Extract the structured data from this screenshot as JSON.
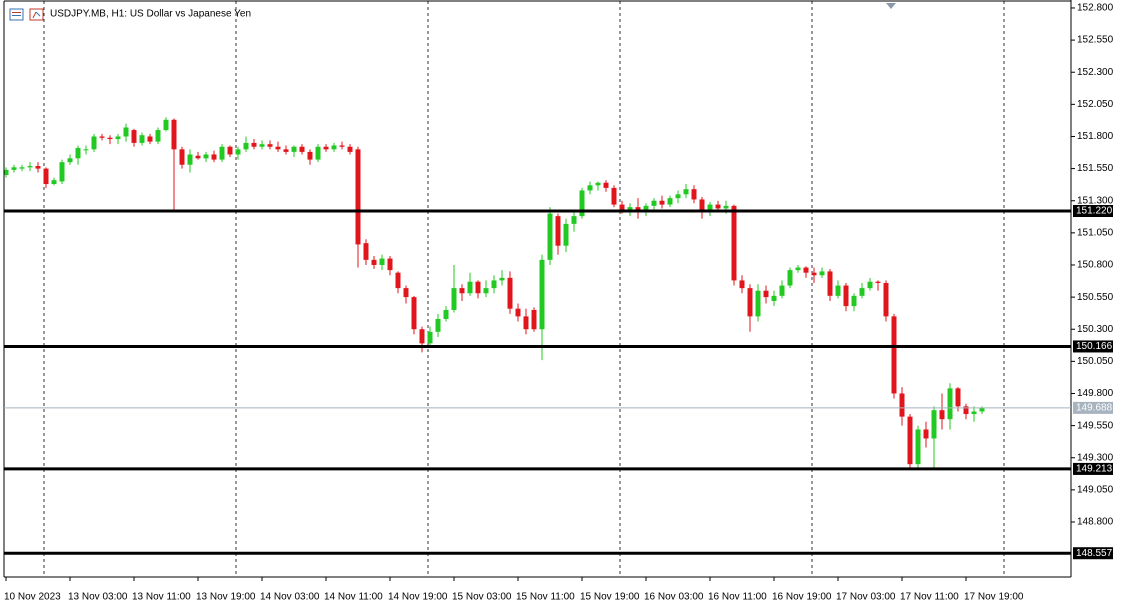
{
  "chart_data": {
    "type": "candlestick",
    "title": "USDJPY.MB, H1:  US Dollar vs Japanese Yen",
    "categories": [
      "10 Nov 2023",
      null,
      null,
      null,
      null,
      null,
      null,
      null,
      "13 Nov 03:00",
      null,
      null,
      null,
      null,
      null,
      null,
      null,
      "13 Nov 11:00",
      null,
      null,
      null,
      null,
      null,
      null,
      null,
      "13 Nov 19:00",
      null,
      null,
      null,
      null,
      null,
      null,
      null,
      "14 Nov 03:00",
      null,
      null,
      null,
      null,
      null,
      null,
      null,
      "14 Nov 11:00",
      null,
      null,
      null,
      null,
      null,
      null,
      null,
      "14 Nov 19:00",
      null,
      null,
      null,
      null,
      null,
      null,
      null,
      "15 Nov 03:00",
      null,
      null,
      null,
      null,
      null,
      null,
      null,
      "15 Nov 11:00",
      null,
      null,
      null,
      null,
      null,
      null,
      null,
      "15 Nov 19:00",
      null,
      null,
      null,
      null,
      null,
      null,
      null,
      "16 Nov 03:00",
      null,
      null,
      null,
      null,
      null,
      null,
      null,
      "16 Nov 11:00",
      null,
      null,
      null,
      null,
      null,
      null,
      null,
      "16 Nov 19:00",
      null,
      null,
      null,
      null,
      null,
      null,
      null,
      "17 Nov 03:00",
      null,
      null,
      null,
      null,
      null,
      null,
      null,
      "17 Nov 11:00",
      null,
      null,
      null,
      null,
      null,
      null,
      null,
      "17 Nov 19:00",
      null,
      null
    ],
    "open": [
      151.5,
      151.54,
      151.55,
      151.56,
      151.57,
      151.55,
      151.43,
      151.45,
      151.6,
      151.63,
      151.7,
      151.7,
      151.8,
      151.79,
      151.78,
      151.8,
      151.85,
      151.75,
      151.8,
      151.76,
      151.85,
      151.93,
      151.7,
      151.58,
      151.65,
      151.63,
      151.66,
      151.62,
      151.72,
      151.66,
      151.7,
      151.75,
      151.72,
      151.74,
      151.72,
      151.7,
      151.68,
      151.72,
      151.68,
      151.62,
      151.72,
      151.7,
      151.73,
      151.72,
      151.7,
      150.97,
      150.84,
      150.8,
      150.85,
      150.74,
      150.62,
      150.55,
      150.3,
      150.19,
      150.28,
      150.38,
      150.45,
      150.62,
      150.58,
      150.67,
      150.58,
      150.62,
      150.68,
      150.7,
      150.46,
      150.4,
      150.45,
      150.3,
      150.84,
      151.18,
      150.95,
      151.12,
      151.18,
      151.38,
      151.42,
      151.44,
      151.4,
      151.27,
      151.23,
      151.25,
      151.22,
      151.26,
      151.3,
      151.27,
      151.32,
      151.35,
      151.39,
      151.31,
      151.22,
      151.27,
      151.24,
      151.26,
      150.68,
      150.62,
      150.4,
      150.6,
      150.52,
      150.56,
      150.64,
      150.76,
      150.78,
      150.74,
      150.72,
      150.75,
      150.56,
      150.64,
      150.48,
      150.56,
      150.62,
      150.67,
      150.66,
      150.4,
      149.8,
      149.62,
      149.25,
      149.52,
      149.45,
      149.67,
      149.6,
      149.84,
      149.7,
      149.64,
      149.66
    ],
    "high": [
      151.56,
      151.58,
      151.58,
      151.6,
      151.6,
      151.56,
      151.48,
      151.62,
      151.66,
      151.73,
      151.73,
      151.82,
      151.82,
      151.81,
      151.82,
      151.9,
      151.86,
      151.83,
      151.82,
      151.87,
      151.95,
      151.94,
      151.72,
      151.7,
      151.68,
      151.68,
      151.69,
      151.74,
      151.73,
      151.72,
      151.8,
      151.78,
      151.77,
      151.77,
      151.76,
      151.73,
      151.73,
      151.74,
      151.7,
      151.74,
      151.74,
      151.75,
      151.76,
      151.74,
      151.72,
      151.0,
      150.87,
      150.88,
      150.87,
      150.75,
      150.64,
      150.56,
      150.32,
      150.32,
      150.42,
      150.48,
      150.8,
      150.65,
      150.74,
      150.68,
      150.68,
      150.72,
      150.76,
      150.75,
      150.5,
      150.46,
      150.47,
      150.88,
      151.25,
      151.2,
      151.16,
      151.22,
      151.4,
      151.45,
      151.45,
      151.46,
      151.42,
      151.3,
      151.28,
      151.32,
      151.28,
      151.32,
      151.34,
      151.34,
      151.38,
      151.43,
      151.42,
      151.33,
      151.29,
      151.3,
      151.3,
      151.27,
      150.72,
      150.65,
      150.65,
      150.64,
      150.6,
      150.68,
      150.78,
      150.8,
      150.79,
      150.78,
      150.78,
      150.77,
      150.68,
      150.66,
      150.58,
      150.66,
      150.7,
      150.68,
      150.68,
      150.42,
      149.85,
      149.64,
      149.55,
      149.58,
      149.7,
      149.8,
      149.88,
      149.85,
      149.72,
      149.7,
      149.7
    ],
    "low": [
      151.48,
      151.52,
      151.53,
      151.53,
      151.52,
      151.4,
      151.42,
      151.43,
      151.58,
      151.58,
      151.66,
      151.68,
      151.77,
      151.74,
      151.74,
      151.76,
      151.72,
      151.73,
      151.74,
      151.74,
      151.84,
      151.22,
      151.55,
      151.52,
      151.62,
      151.6,
      151.6,
      151.6,
      151.64,
      151.62,
      151.68,
      151.7,
      151.7,
      151.7,
      151.68,
      151.66,
      151.64,
      151.66,
      151.58,
      151.6,
      151.68,
      151.68,
      151.7,
      151.66,
      150.78,
      150.8,
      150.77,
      150.76,
      150.72,
      150.58,
      150.5,
      150.26,
      150.12,
      150.17,
      150.24,
      150.36,
      150.43,
      150.52,
      150.56,
      150.54,
      150.55,
      150.58,
      150.64,
      150.42,
      150.36,
      150.26,
      150.28,
      150.06,
      150.8,
      150.88,
      150.9,
      151.06,
      151.16,
      151.35,
      151.38,
      151.37,
      151.25,
      151.2,
      151.18,
      151.16,
      151.18,
      151.22,
      151.24,
      151.25,
      151.28,
      151.32,
      151.28,
      151.16,
      151.18,
      151.22,
      151.2,
      150.64,
      150.58,
      150.28,
      150.36,
      150.5,
      150.48,
      150.54,
      150.62,
      150.74,
      150.7,
      150.66,
      150.7,
      150.52,
      150.54,
      150.44,
      150.44,
      150.54,
      150.6,
      150.6,
      150.36,
      149.76,
      149.55,
      149.22,
      149.22,
      149.38,
      149.21,
      149.52,
      149.52,
      149.66,
      149.6,
      149.58,
      149.64
    ],
    "close": [
      151.54,
      151.56,
      151.56,
      151.57,
      151.55,
      151.43,
      151.46,
      151.6,
      151.63,
      151.71,
      151.7,
      151.8,
      151.79,
      151.78,
      151.8,
      151.87,
      151.75,
      151.81,
      151.76,
      151.85,
      151.93,
      151.7,
      151.58,
      151.66,
      151.63,
      151.66,
      151.62,
      151.72,
      151.66,
      151.7,
      151.75,
      151.72,
      151.74,
      151.72,
      151.7,
      151.68,
      151.72,
      151.68,
      151.62,
      151.72,
      151.7,
      151.73,
      151.72,
      151.68,
      150.96,
      150.84,
      150.8,
      150.85,
      150.76,
      150.62,
      150.55,
      150.3,
      150.19,
      150.28,
      150.38,
      150.45,
      150.62,
      150.58,
      150.67,
      150.58,
      150.62,
      150.68,
      150.7,
      150.46,
      150.4,
      150.3,
      150.3,
      150.84,
      151.2,
      150.95,
      151.12,
      151.18,
      151.38,
      151.42,
      151.44,
      151.4,
      151.27,
      151.23,
      151.25,
      151.22,
      151.26,
      151.3,
      151.27,
      151.32,
      151.35,
      151.39,
      151.31,
      151.22,
      151.27,
      151.24,
      151.26,
      150.68,
      150.62,
      150.4,
      150.6,
      150.55,
      150.56,
      150.64,
      150.76,
      150.78,
      150.74,
      150.72,
      150.75,
      150.56,
      150.64,
      150.48,
      150.56,
      150.62,
      150.67,
      150.66,
      150.4,
      149.8,
      149.62,
      149.25,
      149.52,
      149.45,
      149.67,
      149.6,
      149.84,
      149.7,
      149.64,
      149.66,
      149.688
    ],
    "up_color": "#22c922",
    "down_color": "#e0161c",
    "ylim": [
      148.372,
      152.862
    ],
    "yticks": [
      {
        "value": 152.8,
        "label": "152.800"
      },
      {
        "value": 152.55,
        "label": "152.550"
      },
      {
        "value": 152.3,
        "label": "152.300"
      },
      {
        "value": 152.05,
        "label": "152.050"
      },
      {
        "value": 151.8,
        "label": "151.800"
      },
      {
        "value": 151.55,
        "label": "151.550"
      },
      {
        "value": 151.3,
        "label": "151.300"
      },
      {
        "value": 151.05,
        "label": "151.050"
      },
      {
        "value": 150.8,
        "label": "150.800"
      },
      {
        "value": 150.55,
        "label": "150.550"
      },
      {
        "value": 150.3,
        "label": "150.300"
      },
      {
        "value": 150.05,
        "label": "150.050"
      },
      {
        "value": 149.8,
        "label": "149.800"
      },
      {
        "value": 149.55,
        "label": "149.550"
      },
      {
        "value": 149.3,
        "label": "149.300"
      },
      {
        "value": 149.05,
        "label": "149.050"
      },
      {
        "value": 148.8,
        "label": "148.800"
      }
    ],
    "levels": [
      {
        "value": 151.22,
        "label": "151.220"
      },
      {
        "value": 150.166,
        "label": "150.166"
      },
      {
        "value": 149.213,
        "label": "149.213"
      },
      {
        "value": 148.557,
        "label": "148.557"
      }
    ],
    "last_price": {
      "value": 149.688,
      "label": "149.688"
    },
    "period_separators": true
  }
}
